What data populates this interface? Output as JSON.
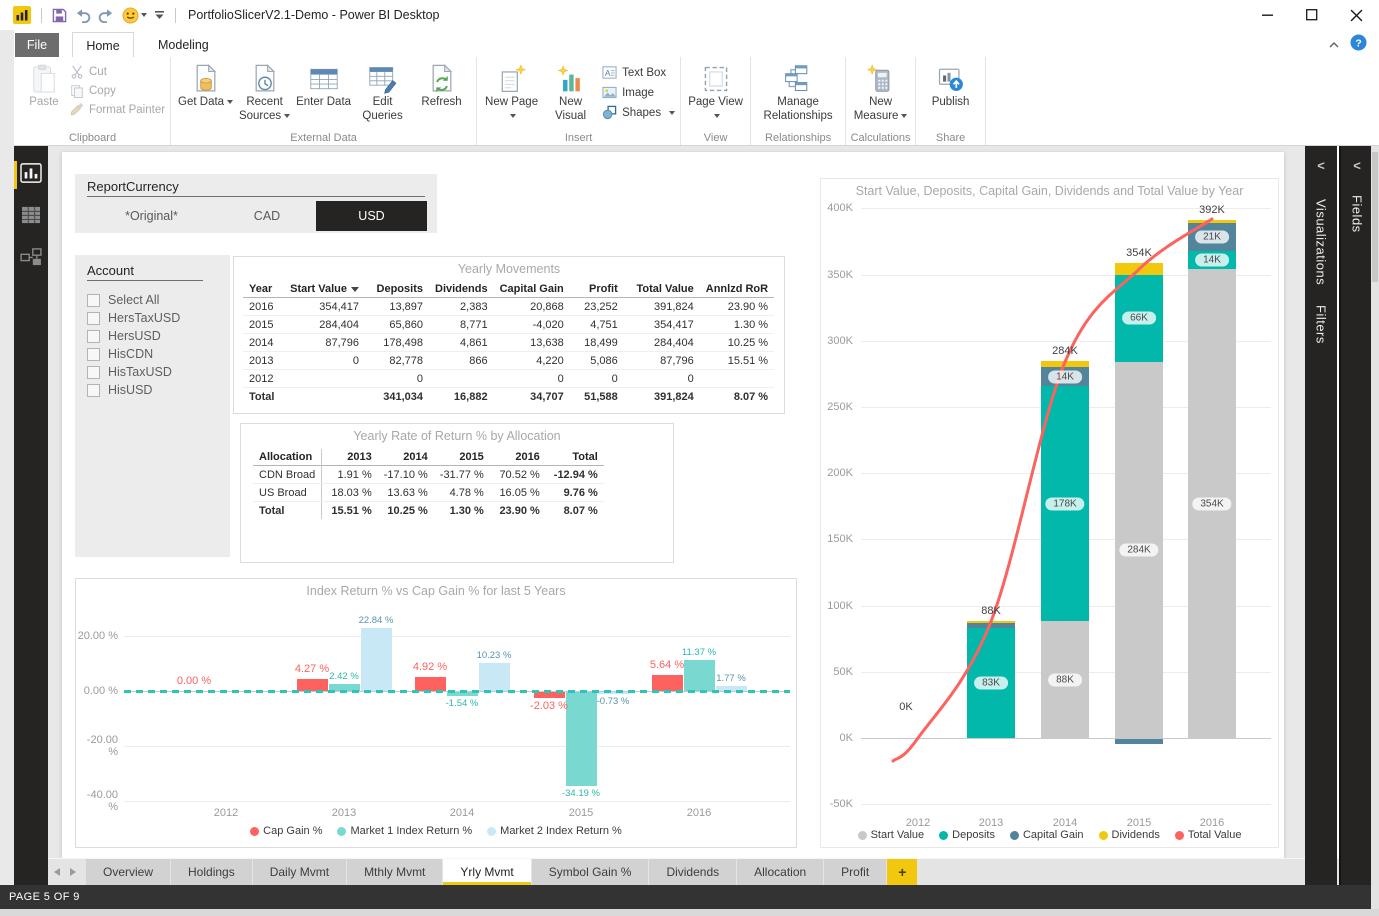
{
  "title_bar": {
    "title": "PortfolioSlicerV2.1-Demo - Power BI Desktop",
    "quick_access": [
      "save",
      "undo",
      "redo",
      "feedback-smiley",
      "customize-toolbar"
    ],
    "window_controls": [
      "minimize",
      "maximize",
      "close"
    ]
  },
  "menu": {
    "tabs": [
      {
        "label": "File"
      },
      {
        "label": "Home",
        "active": true
      },
      {
        "label": "Modeling"
      }
    ]
  },
  "ribbon": {
    "groups": [
      {
        "label": "Clipboard",
        "big": [
          {
            "label": "Paste",
            "icon": "paste",
            "disabled": true,
            "narrow": true
          }
        ],
        "stack": [
          {
            "label": "Cut",
            "icon": "cut",
            "disabled": true
          },
          {
            "label": "Copy",
            "icon": "copy",
            "disabled": true
          },
          {
            "label": "Format Painter",
            "icon": "format-painter",
            "disabled": true
          }
        ]
      },
      {
        "label": "External Data",
        "big": [
          {
            "label": "Get Data",
            "icon": "get-data",
            "dropdown": true
          },
          {
            "label": "Recent Sources",
            "icon": "recent-sources",
            "dropdown": true
          },
          {
            "label": "Enter Data",
            "icon": "enter-data"
          },
          {
            "label": "Edit Queries",
            "icon": "edit-queries"
          },
          {
            "label": "Refresh",
            "icon": "refresh"
          }
        ]
      },
      {
        "label": "Insert",
        "big": [
          {
            "label": "New Page",
            "icon": "new-page",
            "dropdown": true
          },
          {
            "label": "New Visual",
            "icon": "new-visual"
          }
        ],
        "stack": [
          {
            "label": "Text Box",
            "icon": "text-box"
          },
          {
            "label": "Image",
            "icon": "image"
          },
          {
            "label": "Shapes",
            "icon": "shapes",
            "dropdown": true
          }
        ]
      },
      {
        "label": "View",
        "big": [
          {
            "label": "Page View",
            "icon": "page-view",
            "dropdown": true
          }
        ]
      },
      {
        "label": "Relationships",
        "big": [
          {
            "label": "Manage Relationships",
            "icon": "manage-relationships",
            "wide": true
          }
        ]
      },
      {
        "label": "Calculations",
        "big": [
          {
            "label": "New Measure",
            "icon": "new-measure",
            "dropdown": true
          }
        ]
      },
      {
        "label": "Share",
        "big": [
          {
            "label": "Publish",
            "icon": "publish"
          }
        ]
      }
    ]
  },
  "left_rail": {
    "items": [
      {
        "name": "report-view",
        "icon": "report-view",
        "active": true
      },
      {
        "name": "data-view",
        "icon": "data-view"
      },
      {
        "name": "relationships-view",
        "icon": "model-view"
      }
    ]
  },
  "canvas": {
    "report_currency": {
      "label": "ReportCurrency",
      "options": [
        {
          "label": "*Original*"
        },
        {
          "label": "CAD"
        },
        {
          "label": "USD",
          "selected": true
        }
      ]
    },
    "account": {
      "label": "Account",
      "items": [
        "Select All",
        "HersTaxUSD",
        "HersUSD",
        "HisCDN",
        "HisTaxUSD",
        "HisUSD"
      ]
    },
    "yearly_movements": {
      "title": "Yearly Movements",
      "columns": [
        "Year",
        "Start Value",
        "Deposits",
        "Dividends",
        "Capital Gain",
        "Profit",
        "Total Value",
        "Annlzd RoR"
      ],
      "sorted_column": "Start Value",
      "rows": [
        [
          "2016",
          "354,417",
          "13,897",
          "2,383",
          "20,868",
          "23,252",
          "391,824",
          "23.90 %"
        ],
        [
          "2015",
          "284,404",
          "65,860",
          "8,771",
          "-4,020",
          "4,751",
          "354,417",
          "1.30 %"
        ],
        [
          "2014",
          "87,796",
          "178,498",
          "4,861",
          "13,638",
          "18,499",
          "284,404",
          "10.25 %"
        ],
        [
          "2013",
          "0",
          "82,778",
          "866",
          "4,220",
          "5,086",
          "87,796",
          "15.51 %"
        ],
        [
          "2012",
          "",
          "0",
          "",
          "0",
          "0",
          "0",
          ""
        ]
      ],
      "total_row": [
        "Total",
        "",
        "341,034",
        "16,882",
        "34,707",
        "51,588",
        "391,824",
        "8.07 %"
      ]
    },
    "rate_of_return": {
      "title": "Yearly Rate of Return % by Allocation",
      "columns": [
        "Allocation",
        "2013",
        "2014",
        "2015",
        "2016",
        "Total"
      ],
      "rows": [
        [
          "CDN Broad",
          "1.91 %",
          "-17.10 %",
          "-31.77 %",
          "70.52 %",
          "-12.94 %"
        ],
        [
          "US Broad",
          "18.03 %",
          "13.63 %",
          "4.78 %",
          "16.05 %",
          "9.76 %"
        ]
      ],
      "total_row": [
        "Total",
        "15.51 %",
        "10.25 %",
        "1.30 %",
        "23.90 %",
        "8.07 %"
      ]
    }
  },
  "chart_data": [
    {
      "type": "bar",
      "title": "Index Return % vs Cap Gain % for last 5 Years",
      "categories": [
        "2012",
        "2013",
        "2014",
        "2015",
        "2016"
      ],
      "series": [
        {
          "name": "Cap Gain %",
          "color": "#FD625E",
          "label_color": "#FD625E",
          "values": [
            0.0,
            4.27,
            4.92,
            -2.03,
            5.64
          ],
          "labels": [
            "0.00 %",
            "4.27 %",
            "4.92 %",
            "-2.03 %",
            "5.64 %"
          ]
        },
        {
          "name": "Market 1 Index Return %",
          "color": "#79D9D1",
          "label_color": "#2BB8AC",
          "values": [
            0.0,
            2.42,
            -1.54,
            -34.19,
            11.37
          ],
          "labels": [
            "",
            "2.42 %",
            "-1.54 %",
            "-34.19 %",
            "11.37 %"
          ]
        },
        {
          "name": "Market 2 Index Return %",
          "color": "#C9E8F5",
          "label_color": "#5793AE",
          "values": [
            0.0,
            22.84,
            10.23,
            -0.73,
            1.77
          ],
          "labels": [
            "",
            "22.84 %",
            "10.23 %",
            "-0.73 %",
            "1.77 %"
          ]
        }
      ],
      "ylim": [
        -45,
        30
      ],
      "yticks": [
        {
          "value": 20,
          "label": "20.00 %"
        },
        {
          "value": 0,
          "label": "0.00 %"
        },
        {
          "value": -20,
          "label": "-20.00 %"
        },
        {
          "value": -40,
          "label": "-40.00 %"
        }
      ],
      "zero_line": {
        "style": "dashed",
        "color": "#2FC4B8"
      },
      "legend_position": "bottom"
    },
    {
      "type": "stacked-bar-line",
      "title": "Start Value, Deposits, Capital Gain, Dividends and Total Value by Year",
      "categories": [
        "2012",
        "2013",
        "2014",
        "2015",
        "2016"
      ],
      "unit": "K",
      "series": [
        {
          "name": "Start Value",
          "color": "#C9C9C9",
          "values": [
            0,
            0,
            88,
            284,
            354
          ],
          "labels": [
            "",
            "",
            "88K",
            "284K",
            "354K"
          ]
        },
        {
          "name": "Deposits",
          "color": "#01B8AA",
          "values": [
            0,
            83,
            178,
            66,
            14
          ],
          "labels": [
            "",
            "83K",
            "178K",
            "66K",
            "14K"
          ]
        },
        {
          "name": "Capital Gain",
          "color": "#52849B",
          "values": [
            0,
            4,
            14,
            -4,
            21
          ],
          "labels": [
            "",
            "",
            "14K",
            "",
            "21K"
          ]
        },
        {
          "name": "Dividends",
          "color": "#F2C80F",
          "values": [
            0,
            1,
            5,
            9,
            2
          ],
          "labels": [
            "",
            "",
            "",
            "",
            ""
          ]
        }
      ],
      "line": {
        "name": "Total Value",
        "color": "#FD625E",
        "values": [
          0,
          88,
          284,
          354,
          392
        ]
      },
      "total_labels": [
        "0K",
        "88K",
        "284K",
        "354K",
        "392K"
      ],
      "ylim": [
        -50,
        400
      ],
      "yticks": [
        {
          "value": 400,
          "label": "400K"
        },
        {
          "value": 350,
          "label": "350K"
        },
        {
          "value": 300,
          "label": "300K"
        },
        {
          "value": 250,
          "label": "250K"
        },
        {
          "value": 200,
          "label": "200K"
        },
        {
          "value": 150,
          "label": "150K"
        },
        {
          "value": 100,
          "label": "100K"
        },
        {
          "value": 50,
          "label": "50K"
        },
        {
          "value": 0,
          "label": "0K"
        },
        {
          "value": -50,
          "label": "-50K"
        }
      ],
      "legend_position": "bottom"
    }
  ],
  "right_panels": [
    {
      "label": "Visualizations",
      "label2": "Filters"
    },
    {
      "label": "Fields"
    }
  ],
  "tab_strip": {
    "tabs": [
      {
        "label": "Overview"
      },
      {
        "label": "Holdings"
      },
      {
        "label": "Daily Mvmt"
      },
      {
        "label": "Mthly Mvmt"
      },
      {
        "label": "Yrly Mvmt",
        "active": true
      },
      {
        "label": "Symbol Gain %"
      },
      {
        "label": "Dividends"
      },
      {
        "label": "Allocation"
      },
      {
        "label": "Profit"
      },
      {
        "label": "+",
        "add": true
      }
    ]
  },
  "status_bar": {
    "text": "PAGE 5 OF 9"
  },
  "colors": {
    "accent": "#F2C80F",
    "teal": "#01B8AA",
    "red": "#FD625E",
    "gray_series": "#C9C9C9",
    "capital_gain": "#52849B",
    "rail_bg": "#252423",
    "statusbar_bg": "#333333"
  }
}
